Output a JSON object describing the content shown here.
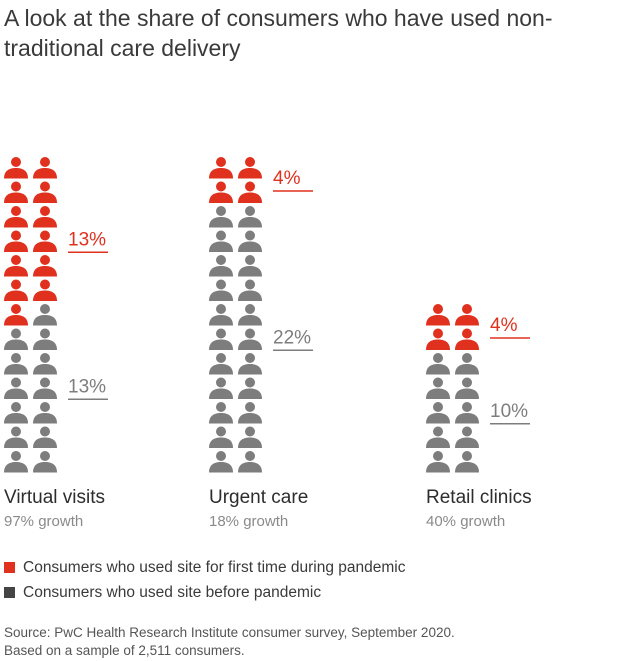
{
  "title": "A look at the share of consumers who have used non-traditional care delivery",
  "colors": {
    "new": "#e0301e",
    "before": "#7d7d7d",
    "legend_before": "#444444"
  },
  "chart_data": {
    "type": "pictogram",
    "units_per_icon": 1,
    "categories": [
      "Virtual visits",
      "Urgent care",
      "Retail clinics"
    ],
    "growth_labels": [
      "97% growth",
      "18% growth",
      "40% growth"
    ],
    "series": [
      {
        "name": "Consumers who used site for first time during pandemic",
        "values": [
          13,
          4,
          4
        ],
        "labels": [
          "13%",
          "4%",
          "4%"
        ]
      },
      {
        "name": "Consumers who used site before pandemic",
        "values": [
          13,
          22,
          10
        ],
        "labels": [
          "13%",
          "22%",
          "10%"
        ]
      }
    ]
  },
  "legend": {
    "new_label": "Consumers who used site for first time during pandemic",
    "before_label": "Consumers who used site before pandemic"
  },
  "source": {
    "line1": "Source: PwC Health Research Institute consumer survey, September 2020.",
    "line2": "Based on a sample of 2,511 consumers."
  }
}
